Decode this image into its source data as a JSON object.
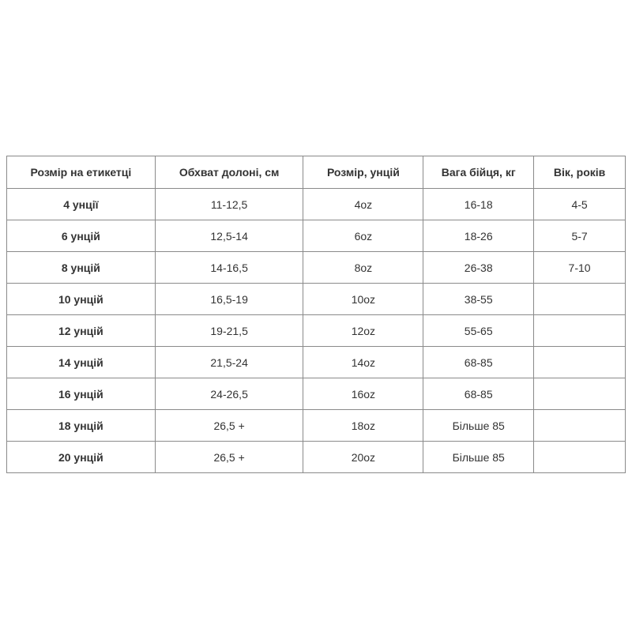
{
  "table": {
    "headers": [
      "Розмір на етикетці",
      "Обхват долоні, см",
      "Розмір, унцій",
      "Вага бійця, кг",
      "Вік, років"
    ],
    "rows": [
      [
        "4 унції",
        "11-12,5",
        "4oz",
        "16-18",
        "4-5"
      ],
      [
        "6 унцій",
        "12,5-14",
        "6oz",
        "18-26",
        "5-7"
      ],
      [
        "8 унцій",
        "14-16,5",
        "8oz",
        "26-38",
        "7-10"
      ],
      [
        "10 унцій",
        "16,5-19",
        "10oz",
        "38-55",
        ""
      ],
      [
        "12 унцій",
        "19-21,5",
        "12oz",
        "55-65",
        ""
      ],
      [
        "14 унцій",
        "21,5-24",
        "14oz",
        "68-85",
        ""
      ],
      [
        "16 унцій",
        "24-26,5",
        "16oz",
        "68-85",
        ""
      ],
      [
        "18 унцій",
        "26,5 +",
        "18oz",
        "Більше 85",
        ""
      ],
      [
        "20 унцій",
        "26,5 +",
        "20oz",
        "Більше 85",
        ""
      ]
    ]
  }
}
